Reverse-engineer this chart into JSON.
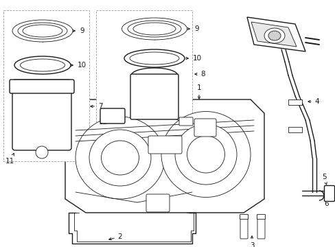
{
  "background_color": "#ffffff",
  "line_color": "#1a1a1a",
  "figsize": [
    4.89,
    3.6
  ],
  "dpi": 100,
  "label_fontsize": 7.5,
  "lw_main": 1.0,
  "lw_thin": 0.6,
  "lw_thick": 1.4
}
